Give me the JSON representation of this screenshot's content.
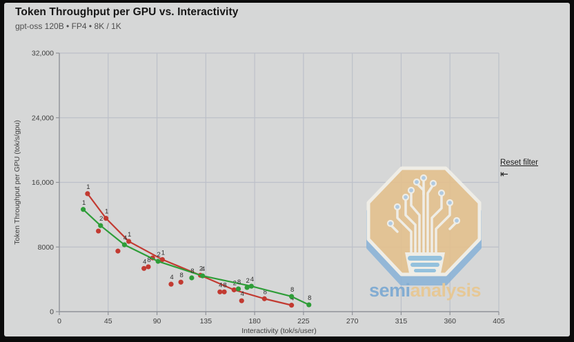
{
  "header": {
    "title": "Token Throughput per GPU vs. Interactivity",
    "subtitle": "gpt-oss 120B • FP4 • 8K / 1K"
  },
  "controls": {
    "reset_filter_label": "Reset filter",
    "reset_filter_icon": "⇤"
  },
  "watermark": {
    "part1": "semi",
    "part2": "analysis",
    "tan": "#e4c18d",
    "blue": "#8ab3d8",
    "dot_blue": "#aac9e4",
    "white": "#f3f1e9",
    "text_blue": "#77a7d2",
    "text_tan": "#e9c78e"
  },
  "chart_data": {
    "type": "scatter",
    "title": "Token Throughput per GPU vs. Interactivity",
    "subtitle": "gpt-oss 120B • FP4 • 8K / 1K",
    "xlabel": "Interactivity (tok/s/user)",
    "ylabel": "Token Throughput per GPU (tok/s/gpu)",
    "xlim": [
      0,
      405
    ],
    "ylim": [
      0,
      32000
    ],
    "xticks": [
      0,
      45,
      90,
      135,
      180,
      225,
      270,
      315,
      360,
      405
    ],
    "yticks": [
      0,
      8000,
      16000,
      24000,
      32000
    ],
    "ytick_labels": [
      "0",
      "8000",
      "16,000",
      "24,000",
      "32,000"
    ],
    "grid": true,
    "colors": {
      "background": "#d6d7d7",
      "grid": "#bcc0c9",
      "axis": "#8f9298",
      "tick_text": "#3f3f3f",
      "point_label": "#2e2e2e",
      "red": "#c23a31",
      "green": "#2e9d38"
    },
    "series": [
      {
        "name": "red-line",
        "color": "#c23a31",
        "line": true,
        "points": [
          {
            "x": 26,
            "y": 14600,
            "label": "1"
          },
          {
            "x": 43,
            "y": 11550,
            "label": "1"
          },
          {
            "x": 64,
            "y": 8700,
            "label": "1"
          },
          {
            "x": 95,
            "y": 6450,
            "label": "1"
          },
          {
            "x": 130,
            "y": 4500,
            "label": "2"
          },
          {
            "x": 161,
            "y": 2700,
            "label": "2"
          },
          {
            "x": 189,
            "y": 1600,
            "label": "8"
          },
          {
            "x": 214,
            "y": 800,
            "label": "4"
          }
        ]
      },
      {
        "name": "red-scatter",
        "color": "#c23a31",
        "line": false,
        "points": [
          {
            "x": 36,
            "y": 9980,
            "label": ""
          },
          {
            "x": 54,
            "y": 7500,
            "label": ""
          },
          {
            "x": 86,
            "y": 6650,
            "label": ""
          },
          {
            "x": 78,
            "y": 5350,
            "label": "4"
          },
          {
            "x": 82,
            "y": 5550,
            "label": "8"
          },
          {
            "x": 103,
            "y": 3400,
            "label": "4"
          },
          {
            "x": 112,
            "y": 3650,
            "label": "8"
          },
          {
            "x": 148,
            "y": 2450,
            "label": "4"
          },
          {
            "x": 152,
            "y": 2450,
            "label": "8"
          },
          {
            "x": 168,
            "y": 1350,
            "label": "4"
          }
        ]
      },
      {
        "name": "green-line",
        "color": "#2e9d38",
        "line": true,
        "points": [
          {
            "x": 22,
            "y": 12650,
            "label": "1"
          },
          {
            "x": 38,
            "y": 10650,
            "label": "2"
          },
          {
            "x": 60,
            "y": 8280,
            "label": "4"
          },
          {
            "x": 91,
            "y": 6230,
            "label": "2"
          },
          {
            "x": 132,
            "y": 4430,
            "label": "4"
          },
          {
            "x": 177,
            "y": 3150,
            "label": "4"
          },
          {
            "x": 214,
            "y": 1880,
            "label": "8"
          },
          {
            "x": 230,
            "y": 850,
            "label": "8"
          }
        ]
      },
      {
        "name": "green-scatter",
        "color": "#2e9d38",
        "line": false,
        "points": [
          {
            "x": 122,
            "y": 4180,
            "label": "8"
          },
          {
            "x": 165,
            "y": 2820,
            "label": "8"
          },
          {
            "x": 173,
            "y": 2990,
            "label": "2"
          }
        ]
      }
    ]
  }
}
